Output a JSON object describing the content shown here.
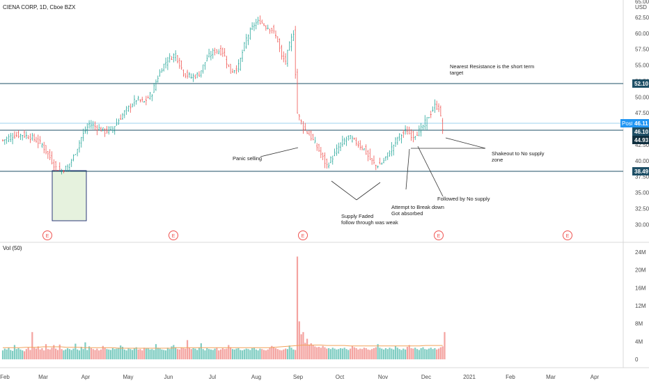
{
  "header": {
    "symbol_title": "CIENA CORP, 1D, Cboe BZX",
    "currency": "USD",
    "volume_label": "Vol (50)"
  },
  "chart_data": {
    "type": "candlestick",
    "title": "CIENA CORP, 1D, Cboe BZX",
    "price_axis": {
      "ylim": [
        28.5,
        65.0
      ],
      "tick_labels": [
        "65.00",
        "62.50",
        "60.00",
        "57.50",
        "55.00",
        "52.50",
        "50.00",
        "47.50",
        "45.00",
        "42.50",
        "40.00",
        "37.50",
        "35.00",
        "32.50",
        "30.00"
      ],
      "tick_values": [
        65.0,
        62.5,
        60.0,
        57.5,
        55.0,
        52.5,
        50.0,
        47.5,
        45.0,
        42.5,
        40.0,
        37.5,
        35.0,
        32.5,
        30.0
      ]
    },
    "volume_axis": {
      "label": "Vol (50)",
      "ylim": [
        0,
        25
      ],
      "tick_labels": [
        "24M",
        "20M",
        "16M",
        "12M",
        "8M",
        "4M",
        "0"
      ],
      "tick_values": [
        24,
        20,
        16,
        12,
        8,
        4,
        0
      ]
    },
    "x_axis": {
      "tick_labels": [
        "Feb",
        "Mar",
        "Apr",
        "May",
        "Jun",
        "Jul",
        "Aug",
        "Sep",
        "Oct",
        "Nov",
        "Dec",
        "2021",
        "Feb",
        "Mar",
        "Apr"
      ]
    },
    "price_levels": [
      {
        "label": "52.10",
        "value": 52.1,
        "kind": "resistance"
      },
      {
        "label": "46.11",
        "value": 46.11,
        "kind": "post"
      },
      {
        "label": "46.10",
        "value": 46.1,
        "kind": "level"
      },
      {
        "label": "44.93",
        "value": 44.93,
        "kind": "last"
      },
      {
        "label": "38.49",
        "value": 38.49,
        "kind": "support"
      }
    ],
    "post_tag": "Post",
    "earnings_marker": "E",
    "earnings_count": 5,
    "price_path": [
      [
        0,
        43.2
      ],
      [
        5,
        43.9
      ],
      [
        10,
        44.1
      ],
      [
        15,
        43.6
      ],
      [
        20,
        42.5
      ],
      [
        24,
        40.5
      ],
      [
        27,
        38.9
      ],
      [
        30,
        38.5
      ],
      [
        33,
        39.0
      ],
      [
        36,
        40.6
      ],
      [
        40,
        43.6
      ],
      [
        44,
        45.8
      ],
      [
        48,
        45.2
      ],
      [
        52,
        44.6
      ],
      [
        56,
        45.1
      ],
      [
        60,
        46.8
      ],
      [
        64,
        48.3
      ],
      [
        68,
        49.6
      ],
      [
        72,
        49.2
      ],
      [
        76,
        50.6
      ],
      [
        78,
        52.4
      ],
      [
        81,
        54.6
      ],
      [
        84,
        55.9
      ],
      [
        88,
        56.7
      ],
      [
        92,
        53.8
      ],
      [
        96,
        53.1
      ],
      [
        100,
        53.6
      ],
      [
        104,
        56.1
      ],
      [
        108,
        57.3
      ],
      [
        112,
        57.1
      ],
      [
        116,
        53.9
      ],
      [
        120,
        54.8
      ],
      [
        124,
        59.1
      ],
      [
        128,
        61.4
      ],
      [
        131,
        61.9
      ],
      [
        134,
        61.1
      ],
      [
        137,
        60.6
      ],
      [
        140,
        58.9
      ],
      [
        142,
        56.2
      ],
      [
        144,
        55.7
      ],
      [
        146,
        58.1
      ],
      [
        148,
        60.2
      ],
      [
        150,
        47.5
      ],
      [
        153,
        45.3
      ],
      [
        157,
        43.7
      ],
      [
        161,
        41.6
      ],
      [
        165,
        39.2
      ],
      [
        168,
        40.6
      ],
      [
        172,
        42.6
      ],
      [
        176,
        43.7
      ],
      [
        180,
        42.9
      ],
      [
        184,
        41.8
      ],
      [
        187,
        40.2
      ],
      [
        190,
        39.2
      ],
      [
        193,
        39.6
      ],
      [
        197,
        41.4
      ],
      [
        201,
        43.6
      ],
      [
        205,
        44.6
      ],
      [
        209,
        43.9
      ],
      [
        213,
        44.9
      ],
      [
        217,
        47.0
      ],
      [
        220,
        48.6
      ],
      [
        222,
        48.4
      ],
      [
        224,
        44.93
      ]
    ],
    "volume_series": [
      2.0,
      2.4,
      2.2,
      2.6,
      2.1,
      1.9,
      3.2,
      2.3,
      2.5,
      2.2,
      2.0,
      1.8,
      2.3,
      2.7,
      2.1,
      6.1,
      2.6,
      2.4,
      2.9,
      2.2,
      2.5,
      2.0,
      3.4,
      2.3,
      2.2,
      2.6,
      3.2,
      2.4,
      2.1,
      3.3,
      2.3,
      2.0,
      2.2,
      2.5,
      2.3,
      2.1,
      2.4,
      3.5,
      2.2,
      2.0,
      2.8,
      2.3,
      3.8,
      2.1,
      2.9,
      2.5,
      2.3,
      2.1,
      2.4,
      2.0,
      2.2,
      3.0,
      2.6,
      2.3,
      2.2,
      2.1,
      2.5,
      2.3,
      2.4,
      2.6,
      3.1,
      2.8,
      2.2,
      2.0,
      2.4,
      2.3,
      2.1,
      2.5,
      2.7,
      2.2,
      2.3,
      2.0,
      2.6,
      2.4,
      2.5,
      2.2,
      2.3,
      2.1,
      3.4,
      2.6,
      2.4,
      2.2,
      2.1,
      2.0,
      2.6,
      2.3,
      2.9,
      3.2,
      2.7,
      2.3,
      2.2,
      2.6,
      2.5,
      2.4,
      4.3,
      2.6,
      2.3,
      2.5,
      2.4,
      2.1,
      2.6,
      3.6,
      2.3,
      2.0,
      2.5,
      2.3,
      2.2,
      2.1,
      2.4,
      2.6,
      2.0,
      2.2,
      2.5,
      2.3,
      2.4,
      3.2,
      2.7,
      2.3,
      2.2,
      2.4,
      2.5,
      2.1,
      2.0,
      2.2,
      2.4,
      2.3,
      2.1,
      2.5,
      2.6,
      2.2,
      2.0,
      2.4,
      2.3,
      2.1,
      2.0,
      2.2,
      2.6,
      3.0,
      2.8,
      2.5,
      2.3,
      2.1,
      2.0,
      2.2,
      2.4,
      2.3,
      3.1,
      2.6,
      2.2,
      2.1,
      23.0,
      8.5,
      5.6,
      6.1,
      3.7,
      4.6,
      3.3,
      3.6,
      3.2,
      2.9,
      2.7,
      2.8,
      2.6,
      3.0,
      2.7,
      2.4,
      2.5,
      2.3,
      2.6,
      2.4,
      2.2,
      2.3,
      2.5,
      2.4,
      2.6,
      2.3,
      2.1,
      2.4,
      3.0,
      2.7,
      2.5,
      2.2,
      2.4,
      2.3,
      2.6,
      2.5,
      2.2,
      2.1,
      2.3,
      2.5,
      2.7,
      3.4,
      2.6,
      2.4,
      2.2,
      2.5,
      2.3,
      2.6,
      2.4,
      2.2,
      3.0,
      2.6,
      2.3,
      2.1,
      2.4,
      2.2,
      2.8,
      3.2,
      2.5,
      2.4,
      2.6,
      2.3,
      2.1,
      2.5,
      2.7,
      2.3,
      2.2,
      2.4,
      2.6,
      2.3,
      2.5,
      2.2,
      2.4,
      2.7,
      2.9,
      6.1
    ],
    "volume_ma": [
      2.6,
      2.6,
      2.6,
      2.6,
      2.7,
      2.7,
      2.7,
      2.8,
      2.8,
      2.8,
      2.8,
      2.7,
      2.7,
      2.7,
      2.6,
      2.6,
      2.6,
      2.6,
      2.6,
      2.6,
      2.5,
      2.5,
      2.5,
      2.5,
      2.5,
      2.5,
      2.5,
      2.5,
      2.5,
      2.5,
      2.6,
      2.6,
      2.6,
      2.6,
      2.6,
      2.6,
      2.6,
      2.6,
      2.6,
      2.6,
      2.6,
      2.6,
      2.6,
      2.6,
      2.6,
      2.6,
      2.6,
      2.7,
      2.8,
      2.9,
      3.0,
      3.1,
      3.2,
      3.2,
      3.2,
      3.2,
      3.1,
      3.1,
      3.1,
      3.1,
      3.0,
      3.0,
      3.0,
      3.0,
      3.0,
      3.0,
      3.0,
      3.0,
      3.0,
      3.0,
      3.0,
      3.0,
      3.0,
      3.1,
      3.1,
      3.1,
      3.1
    ],
    "annotations": [
      {
        "lines": [
          "Nearest Resistance is the short term",
          "target"
        ]
      },
      {
        "lines": [
          "Panic selling"
        ]
      },
      {
        "lines": [
          "Shakeout to No supply",
          "zone"
        ]
      },
      {
        "lines": [
          "Followed by No supply"
        ]
      },
      {
        "lines": [
          "Attempt to Break down",
          "Got absorbed"
        ]
      },
      {
        "lines": [
          "Supply Faded",
          "follow through was weak"
        ]
      }
    ],
    "grid": false,
    "legend": "none"
  }
}
